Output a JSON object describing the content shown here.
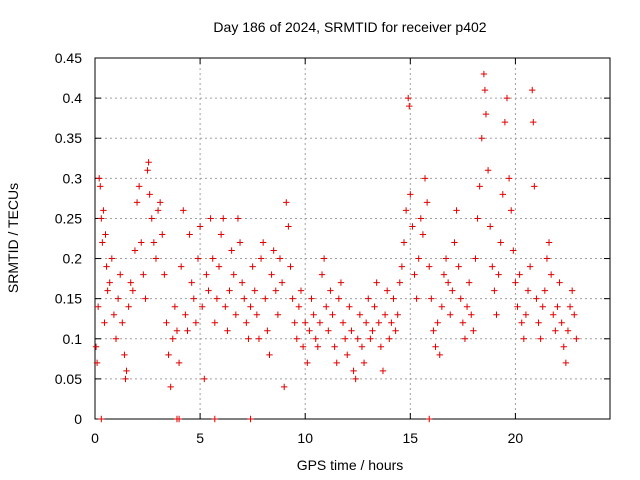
{
  "chart_data": {
    "type": "scatter",
    "title": "Day 186 of 2024, SRMTID for receiver p402",
    "xlabel": "GPS time / hours",
    "ylabel": "SRMTID / TECUs",
    "xlim": [
      0,
      24.5
    ],
    "ylim": [
      0,
      0.45
    ],
    "xticks": [
      0,
      5,
      10,
      15,
      20
    ],
    "xtick_labels": [
      "0",
      "5",
      "10",
      "15",
      "20"
    ],
    "yticks": [
      0,
      0.05,
      0.1,
      0.15,
      0.2,
      0.25,
      0.3,
      0.35,
      0.4,
      0.45
    ],
    "ytick_labels": [
      "0",
      "0.05",
      "0.1",
      "0.15",
      "0.2",
      "0.25",
      "0.3",
      "0.35",
      "0.4",
      "0.45"
    ],
    "grid": true,
    "marker": "plus",
    "color": "#e00000",
    "series": [
      {
        "name": "SRMTID",
        "points": [
          [
            0.05,
            0.09
          ],
          [
            0.1,
            0.07
          ],
          [
            0.15,
            0.14
          ],
          [
            0.2,
            0.3
          ],
          [
            0.25,
            0.29
          ],
          [
            0.3,
            0.25
          ],
          [
            0.35,
            0.22
          ],
          [
            0.4,
            0.26
          ],
          [
            0.45,
            0.12
          ],
          [
            0.5,
            0.23
          ],
          [
            0.55,
            0.19
          ],
          [
            0.6,
            0.16
          ],
          [
            0.7,
            0.17
          ],
          [
            0.8,
            0.2
          ],
          [
            0.9,
            0.13
          ],
          [
            1.0,
            0.1
          ],
          [
            1.1,
            0.15
          ],
          [
            1.2,
            0.18
          ],
          [
            1.3,
            0.12
          ],
          [
            1.4,
            0.08
          ],
          [
            1.45,
            0.05
          ],
          [
            1.5,
            0.06
          ],
          [
            1.6,
            0.14
          ],
          [
            1.7,
            0.17
          ],
          [
            1.8,
            0.16
          ],
          [
            1.9,
            0.21
          ],
          [
            2.0,
            0.27
          ],
          [
            2.1,
            0.29
          ],
          [
            2.2,
            0.22
          ],
          [
            2.3,
            0.18
          ],
          [
            2.4,
            0.15
          ],
          [
            2.5,
            0.31
          ],
          [
            2.55,
            0.32
          ],
          [
            2.6,
            0.28
          ],
          [
            2.7,
            0.25
          ],
          [
            2.8,
            0.22
          ],
          [
            2.9,
            0.2
          ],
          [
            3.0,
            0.26
          ],
          [
            3.1,
            0.27
          ],
          [
            3.2,
            0.23
          ],
          [
            3.3,
            0.18
          ],
          [
            3.4,
            0.12
          ],
          [
            3.5,
            0.08
          ],
          [
            3.6,
            0.04
          ],
          [
            3.7,
            0.1
          ],
          [
            3.8,
            0.14
          ],
          [
            3.9,
            0.11
          ],
          [
            4.0,
            0.07
          ],
          [
            4.1,
            0.19
          ],
          [
            4.2,
            0.26
          ],
          [
            4.3,
            0.13
          ],
          [
            4.4,
            0.11
          ],
          [
            4.5,
            0.23
          ],
          [
            4.6,
            0.17
          ],
          [
            4.7,
            0.15
          ],
          [
            4.8,
            0.12
          ],
          [
            4.9,
            0.2
          ],
          [
            5.0,
            0.24
          ],
          [
            5.1,
            0.14
          ],
          [
            5.2,
            0.05
          ],
          [
            5.3,
            0.18
          ],
          [
            5.4,
            0.16
          ],
          [
            5.5,
            0.25
          ],
          [
            5.6,
            0.2
          ],
          [
            5.7,
            0.12
          ],
          [
            5.8,
            0.15
          ],
          [
            5.9,
            0.19
          ],
          [
            6.0,
            0.23
          ],
          [
            6.1,
            0.25
          ],
          [
            6.2,
            0.14
          ],
          [
            6.3,
            0.11
          ],
          [
            6.4,
            0.16
          ],
          [
            6.5,
            0.21
          ],
          [
            6.6,
            0.18
          ],
          [
            6.7,
            0.13
          ],
          [
            6.8,
            0.25
          ],
          [
            6.9,
            0.22
          ],
          [
            7.0,
            0.17
          ],
          [
            7.1,
            0.15
          ],
          [
            7.2,
            0.12
          ],
          [
            7.3,
            0.1
          ],
          [
            7.4,
            0.14
          ],
          [
            7.5,
            0.19
          ],
          [
            7.6,
            0.16
          ],
          [
            7.7,
            0.13
          ],
          [
            7.8,
            0.1
          ],
          [
            7.9,
            0.2
          ],
          [
            8.0,
            0.22
          ],
          [
            8.1,
            0.15
          ],
          [
            8.2,
            0.11
          ],
          [
            8.3,
            0.08
          ],
          [
            8.4,
            0.18
          ],
          [
            8.5,
            0.21
          ],
          [
            8.6,
            0.16
          ],
          [
            8.7,
            0.13
          ],
          [
            8.8,
            0.2
          ],
          [
            8.9,
            0.17
          ],
          [
            9.0,
            0.04
          ],
          [
            9.1,
            0.27
          ],
          [
            9.2,
            0.24
          ],
          [
            9.3,
            0.19
          ],
          [
            9.4,
            0.15
          ],
          [
            9.5,
            0.12
          ],
          [
            9.6,
            0.1
          ],
          [
            9.7,
            0.14
          ],
          [
            9.8,
            0.16
          ],
          [
            9.9,
            0.09
          ],
          [
            10.0,
            0.12
          ],
          [
            10.1,
            0.07
          ],
          [
            10.2,
            0.11
          ],
          [
            10.3,
            0.15
          ],
          [
            10.4,
            0.13
          ],
          [
            10.5,
            0.1
          ],
          [
            10.6,
            0.09
          ],
          [
            10.7,
            0.12
          ],
          [
            10.8,
            0.18
          ],
          [
            10.9,
            0.2
          ],
          [
            11.0,
            0.14
          ],
          [
            11.1,
            0.11
          ],
          [
            11.2,
            0.16
          ],
          [
            11.3,
            0.13
          ],
          [
            11.4,
            0.09
          ],
          [
            11.5,
            0.07
          ],
          [
            11.6,
            0.15
          ],
          [
            11.7,
            0.17
          ],
          [
            11.8,
            0.12
          ],
          [
            11.9,
            0.1
          ],
          [
            12.0,
            0.08
          ],
          [
            12.1,
            0.14
          ],
          [
            12.2,
            0.11
          ],
          [
            12.3,
            0.06
          ],
          [
            12.4,
            0.05
          ],
          [
            12.5,
            0.1
          ],
          [
            12.6,
            0.13
          ],
          [
            12.7,
            0.09
          ],
          [
            12.8,
            0.07
          ],
          [
            12.9,
            0.12
          ],
          [
            13.0,
            0.15
          ],
          [
            13.1,
            0.1
          ],
          [
            13.2,
            0.11
          ],
          [
            13.3,
            0.14
          ],
          [
            13.4,
            0.17
          ],
          [
            13.5,
            0.12
          ],
          [
            13.6,
            0.09
          ],
          [
            13.7,
            0.06
          ],
          [
            13.8,
            0.13
          ],
          [
            13.9,
            0.16
          ],
          [
            14.0,
            0.1
          ],
          [
            14.1,
            0.12
          ],
          [
            14.2,
            0.15
          ],
          [
            14.3,
            0.11
          ],
          [
            14.4,
            0.13
          ],
          [
            14.5,
            0.17
          ],
          [
            14.6,
            0.19
          ],
          [
            14.7,
            0.22
          ],
          [
            14.8,
            0.26
          ],
          [
            14.9,
            0.4
          ],
          [
            14.95,
            0.39
          ],
          [
            15.0,
            0.28
          ],
          [
            15.1,
            0.24
          ],
          [
            15.2,
            0.18
          ],
          [
            15.3,
            0.15
          ],
          [
            15.4,
            0.2
          ],
          [
            15.5,
            0.25
          ],
          [
            15.6,
            0.23
          ],
          [
            15.7,
            0.3
          ],
          [
            15.8,
            0.27
          ],
          [
            15.9,
            0.19
          ],
          [
            16.0,
            0.15
          ],
          [
            16.1,
            0.11
          ],
          [
            16.2,
            0.09
          ],
          [
            16.3,
            0.12
          ],
          [
            16.4,
            0.08
          ],
          [
            16.5,
            0.14
          ],
          [
            16.6,
            0.18
          ],
          [
            16.7,
            0.2
          ],
          [
            16.8,
            0.17
          ],
          [
            16.9,
            0.13
          ],
          [
            17.0,
            0.16
          ],
          [
            17.1,
            0.22
          ],
          [
            17.2,
            0.26
          ],
          [
            17.3,
            0.19
          ],
          [
            17.4,
            0.15
          ],
          [
            17.5,
            0.12
          ],
          [
            17.6,
            0.1
          ],
          [
            17.7,
            0.14
          ],
          [
            17.8,
            0.17
          ],
          [
            17.9,
            0.13
          ],
          [
            18.0,
            0.11
          ],
          [
            18.1,
            0.2
          ],
          [
            18.2,
            0.25
          ],
          [
            18.3,
            0.29
          ],
          [
            18.4,
            0.35
          ],
          [
            18.5,
            0.43
          ],
          [
            18.55,
            0.41
          ],
          [
            18.6,
            0.38
          ],
          [
            18.7,
            0.31
          ],
          [
            18.8,
            0.24
          ],
          [
            18.9,
            0.19
          ],
          [
            19.0,
            0.16
          ],
          [
            19.1,
            0.13
          ],
          [
            19.2,
            0.18
          ],
          [
            19.3,
            0.22
          ],
          [
            19.4,
            0.28
          ],
          [
            19.5,
            0.37
          ],
          [
            19.6,
            0.4
          ],
          [
            19.7,
            0.3
          ],
          [
            19.8,
            0.26
          ],
          [
            19.9,
            0.21
          ],
          [
            20.0,
            0.17
          ],
          [
            20.1,
            0.14
          ],
          [
            20.2,
            0.18
          ],
          [
            20.3,
            0.12
          ],
          [
            20.4,
            0.1
          ],
          [
            20.5,
            0.13
          ],
          [
            20.6,
            0.16
          ],
          [
            20.7,
            0.19
          ],
          [
            20.8,
            0.41
          ],
          [
            20.85,
            0.37
          ],
          [
            20.9,
            0.29
          ],
          [
            21.0,
            0.15
          ],
          [
            21.1,
            0.12
          ],
          [
            21.2,
            0.1
          ],
          [
            21.3,
            0.14
          ],
          [
            21.4,
            0.16
          ],
          [
            21.5,
            0.2
          ],
          [
            21.6,
            0.22
          ],
          [
            21.7,
            0.18
          ],
          [
            21.8,
            0.13
          ],
          [
            21.9,
            0.11
          ],
          [
            22.0,
            0.14
          ],
          [
            22.1,
            0.17
          ],
          [
            22.2,
            0.12
          ],
          [
            22.3,
            0.09
          ],
          [
            22.4,
            0.07
          ],
          [
            22.5,
            0.11
          ],
          [
            22.6,
            0.14
          ],
          [
            22.7,
            0.16
          ],
          [
            22.8,
            0.13
          ],
          [
            22.9,
            0.1
          ],
          [
            0.3,
            0.0
          ],
          [
            3.9,
            0.0
          ],
          [
            4.0,
            0.0
          ],
          [
            5.7,
            0.0
          ],
          [
            7.4,
            0.0
          ],
          [
            15.9,
            0.0
          ]
        ]
      }
    ]
  }
}
